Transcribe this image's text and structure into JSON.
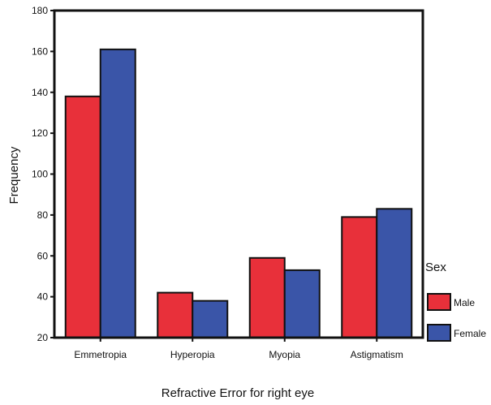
{
  "chart_data": {
    "type": "bar",
    "title": "",
    "xlabel": "Refractive Error for right eye",
    "ylabel": "Frequency",
    "ylim": [
      20,
      180
    ],
    "yticks": [
      20,
      40,
      60,
      80,
      100,
      120,
      140,
      160,
      180
    ],
    "grid": false,
    "legend_placement": "right",
    "legend_title": "Sex",
    "categories": [
      "Emmetropia",
      "Hyperopia",
      "Myopia",
      "Astigmatism"
    ],
    "series": [
      {
        "name": "Male",
        "color": "#e8303a",
        "values": [
          138,
          42,
          59,
          79
        ]
      },
      {
        "name": "Female",
        "color": "#3a55a8",
        "values": [
          161,
          38,
          53,
          83
        ]
      }
    ]
  }
}
